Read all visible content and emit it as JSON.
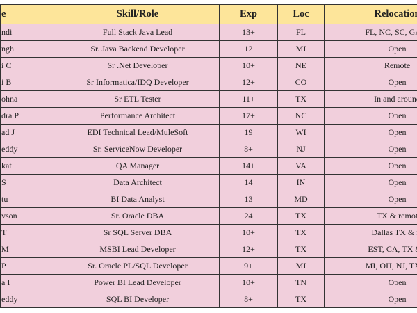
{
  "headers": [
    "e",
    "Skill/Role",
    "Exp",
    "Loc",
    "Relocation"
  ],
  "colors": {
    "header_bg": "#fde59a",
    "row_bg": "#f1cfdc",
    "border": "#333333"
  },
  "rows": [
    [
      "ndi",
      "Full Stack Java Lead",
      "13+",
      "FL",
      "FL, NC, SC, GA &"
    ],
    [
      "ngh",
      "Sr. Java Backend Developer",
      "12",
      "MI",
      "Open"
    ],
    [
      "i C",
      "Sr .Net Developer",
      "10+",
      "NE",
      "Remote"
    ],
    [
      "i B",
      "Sr Informatica/IDQ Developer",
      "12+",
      "CO",
      "Open"
    ],
    [
      "ohna",
      "Sr ETL Tester",
      "11+",
      "TX",
      "In and around"
    ],
    [
      "dra P",
      "Performance Architect",
      "17+",
      "NC",
      "Open"
    ],
    [
      "ad J",
      "EDI Technical Lead/MuleSoft",
      "19",
      "WI",
      "Open"
    ],
    [
      "eddy",
      "Sr. ServiceNow Developer",
      "8+",
      "NJ",
      "Open"
    ],
    [
      "kat",
      "QA Manager",
      "14+",
      "VA",
      "Open"
    ],
    [
      "S",
      "Data Architect",
      "14",
      "IN",
      "Open"
    ],
    [
      "tu",
      "BI Data Analyst",
      "13",
      "MD",
      "Open"
    ],
    [
      "vson",
      "Sr. Oracle DBA",
      "24",
      "TX",
      "TX & remot"
    ],
    [
      "T",
      "Sr SQL Server DBA",
      "10+",
      "TX",
      "Dallas TX & re"
    ],
    [
      "M",
      "MSBI Lead Developer",
      "12+",
      "TX",
      "EST, CA, TX & r"
    ],
    [
      "P",
      "Sr. Oracle PL/SQL Developer",
      "9+",
      "MI",
      "MI, OH, NJ, TX &"
    ],
    [
      "a I",
      "Power BI Lead Developer",
      "10+",
      "TN",
      "Open"
    ],
    [
      "eddy",
      "SQL BI Developer",
      "8+",
      "TX",
      "Open"
    ]
  ]
}
